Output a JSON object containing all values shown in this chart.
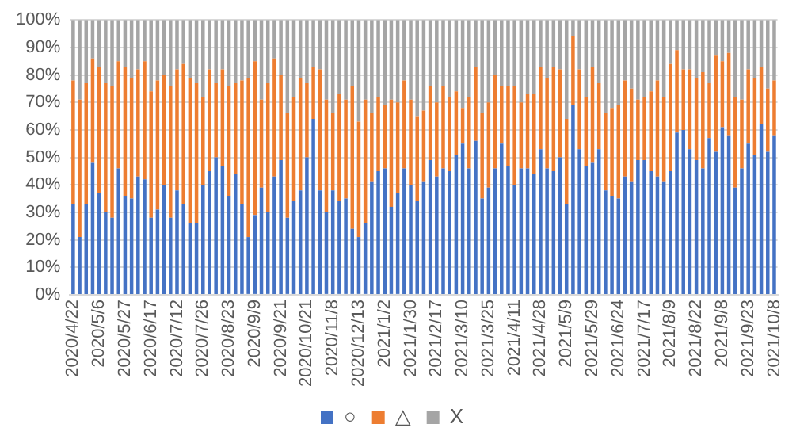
{
  "chart_data": {
    "type": "bar",
    "stacked": true,
    "grid": "y",
    "legend": "bottom",
    "categories": [
      "2020/4/22",
      null,
      null,
      null,
      "2020/5/6",
      null,
      null,
      null,
      "2020/5/27",
      null,
      null,
      null,
      "2020/6/17",
      null,
      null,
      null,
      "2020/7/12",
      null,
      null,
      null,
      "2020/7/26",
      null,
      null,
      null,
      "2020/8/23",
      null,
      null,
      null,
      "2020/9/9",
      null,
      null,
      null,
      "2020/9/21",
      null,
      null,
      null,
      "2020/10/21",
      null,
      null,
      null,
      "2020/11/8",
      null,
      null,
      null,
      "2020/12/13",
      null,
      null,
      null,
      "2021/1/2",
      null,
      null,
      null,
      "2021/1/30",
      null,
      null,
      null,
      "2021/2/17",
      null,
      null,
      null,
      "2021/3/10",
      null,
      null,
      null,
      "2021/3/25",
      null,
      null,
      null,
      "2021/4/11",
      null,
      null,
      null,
      "2021/4/28",
      null,
      null,
      null,
      "2021/5/9",
      null,
      null,
      null,
      "2021/5/29",
      null,
      null,
      null,
      "2021/6/24",
      null,
      null,
      null,
      "2021/7/17",
      null,
      null,
      null,
      "2021/8/9",
      null,
      null,
      null,
      "2021/8/22",
      null,
      null,
      null,
      "2021/9/8",
      null,
      null,
      null,
      "2021/9/23",
      null,
      null,
      null,
      "2021/10/8"
    ],
    "series": [
      {
        "name": "○",
        "color": "#4472c4",
        "values": [
          33,
          21,
          33,
          48,
          37,
          30,
          28,
          46,
          36,
          35,
          43,
          42,
          28,
          31,
          40,
          28,
          38,
          33,
          26,
          26,
          40,
          45,
          50,
          47,
          36,
          44,
          33,
          21,
          29,
          39,
          30,
          43,
          49,
          28,
          34,
          38,
          50,
          64,
          38,
          30,
          38,
          34,
          35,
          24,
          21,
          26,
          41,
          45,
          46,
          32,
          37,
          46,
          40,
          34,
          41,
          49,
          43,
          46,
          45,
          51,
          55,
          46,
          56,
          35,
          39,
          46,
          55,
          47,
          40,
          46,
          46,
          44,
          53,
          46,
          45,
          50,
          33,
          69,
          53,
          47,
          48,
          53,
          38,
          36,
          35,
          43,
          41,
          49,
          49,
          45,
          43,
          41,
          45,
          59,
          60,
          53,
          49,
          46,
          57,
          52,
          61,
          58,
          39,
          46,
          55,
          51,
          62,
          52,
          58
        ]
      },
      {
        "name": "△",
        "color": "#ed7d31",
        "values": [
          45,
          50,
          44,
          38,
          46,
          47,
          48,
          39,
          47,
          44,
          39,
          43,
          46,
          47,
          40,
          48,
          44,
          51,
          53,
          51,
          32,
          37,
          27,
          35,
          40,
          33,
          45,
          58,
          56,
          32,
          47,
          43,
          31,
          38,
          38,
          41,
          27,
          19,
          44,
          41,
          28,
          39,
          36,
          52,
          42,
          45,
          25,
          27,
          23,
          39,
          33,
          32,
          31,
          31,
          26,
          27,
          27,
          30,
          27,
          23,
          13,
          26,
          27,
          31,
          31,
          34,
          21,
          29,
          36,
          24,
          27,
          29,
          30,
          33,
          38,
          32,
          31,
          25,
          29,
          25,
          35,
          24,
          28,
          32,
          34,
          35,
          34,
          22,
          23,
          29,
          35,
          31,
          39,
          30,
          22,
          29,
          30,
          35,
          20,
          35,
          24,
          30,
          33,
          25,
          27,
          28,
          21,
          23,
          20
        ]
      },
      {
        "name": "X",
        "color": "#a5a5a5",
        "values": [
          22,
          29,
          23,
          14,
          17,
          23,
          24,
          15,
          17,
          21,
          18,
          15,
          26,
          22,
          20,
          24,
          18,
          16,
          21,
          23,
          28,
          18,
          23,
          18,
          24,
          23,
          22,
          21,
          15,
          29,
          23,
          14,
          20,
          34,
          28,
          21,
          23,
          17,
          18,
          29,
          34,
          27,
          29,
          24,
          37,
          29,
          34,
          28,
          31,
          29,
          30,
          22,
          29,
          35,
          33,
          24,
          30,
          24,
          28,
          26,
          32,
          28,
          17,
          34,
          30,
          20,
          24,
          24,
          24,
          30,
          27,
          27,
          17,
          21,
          17,
          18,
          36,
          6,
          18,
          28,
          17,
          23,
          34,
          32,
          31,
          22,
          25,
          29,
          28,
          26,
          22,
          28,
          16,
          11,
          18,
          18,
          21,
          19,
          23,
          13,
          15,
          12,
          28,
          29,
          18,
          21,
          17,
          25,
          22
        ]
      }
    ],
    "ylim": [
      0,
      100
    ],
    "yticks": [
      {
        "value": 0,
        "label": "0%"
      },
      {
        "value": 10,
        "label": "10%"
      },
      {
        "value": 20,
        "label": "20%"
      },
      {
        "value": 30,
        "label": "30%"
      },
      {
        "value": 40,
        "label": "40%"
      },
      {
        "value": 50,
        "label": "50%"
      },
      {
        "value": 60,
        "label": "60%"
      },
      {
        "value": 70,
        "label": "70%"
      },
      {
        "value": 80,
        "label": "80%"
      },
      {
        "value": 90,
        "label": "90%"
      },
      {
        "value": 100,
        "label": "100%"
      }
    ]
  }
}
